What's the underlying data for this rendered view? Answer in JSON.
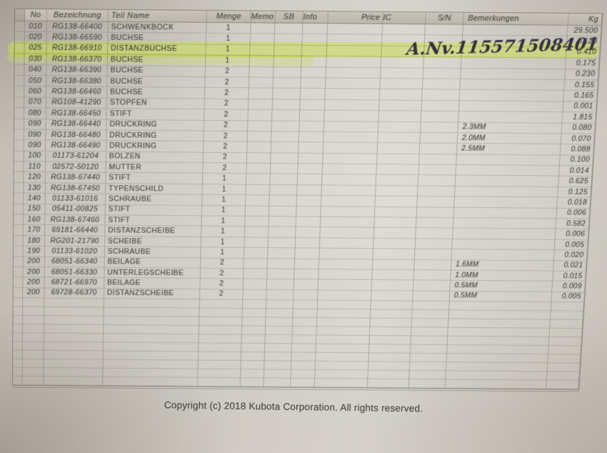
{
  "table": {
    "columns": [
      "",
      "No",
      "Bezeichnung",
      "Teil Name",
      "Menge",
      "Memo",
      "SB",
      "Info",
      "Price",
      "IC",
      "S/N",
      "Bemerkungen",
      "Kg"
    ],
    "rows": [
      {
        "no": "010",
        "bezeichnung": "RG138-66400",
        "teil_name": "SCHWENKBOCK",
        "menge": "1",
        "kg": "29.500"
      },
      {
        "no": "020",
        "bezeichnung": "RG138-66590",
        "teil_name": "BUCHSE",
        "menge": "1",
        "kg": "0.120"
      },
      {
        "no": "025",
        "bezeichnung": "RG138-66910",
        "teil_name": "DISTANZBUCHSE",
        "menge": "1",
        "kg": "0.410"
      },
      {
        "no": "030",
        "bezeichnung": "RG138-66370",
        "teil_name": "BUCHSE",
        "menge": "1",
        "kg": "0.175"
      },
      {
        "no": "040",
        "bezeichnung": "RG138-66390",
        "teil_name": "BUCHSE",
        "menge": "2",
        "kg": "0.230"
      },
      {
        "no": "050",
        "bezeichnung": "RG138-66380",
        "teil_name": "BUCHSE",
        "menge": "2",
        "kg": "0.155"
      },
      {
        "no": "060",
        "bezeichnung": "RG138-66460",
        "teil_name": "BUCHSE",
        "menge": "2",
        "kg": "0.165"
      },
      {
        "no": "070",
        "bezeichnung": "RG108-41290",
        "teil_name": "STOPFEN",
        "menge": "2",
        "kg": "0.001"
      },
      {
        "no": "080",
        "bezeichnung": "RG138-66450",
        "teil_name": "STIFT",
        "menge": "2",
        "kg": "1.815"
      },
      {
        "no": "090",
        "bezeichnung": "RG138-66440",
        "teil_name": "DRUCKRING",
        "menge": "2",
        "bemerkungen": "2.3MM",
        "kg": "0.080"
      },
      {
        "no": "090",
        "bezeichnung": "RG138-66480",
        "teil_name": "DRUCKRING",
        "menge": "2",
        "bemerkungen": "2.0MM",
        "kg": "0.070"
      },
      {
        "no": "090",
        "bezeichnung": "RG138-66490",
        "teil_name": "DRUCKRING",
        "menge": "2",
        "bemerkungen": "2.5MM",
        "kg": "0.088"
      },
      {
        "no": "100",
        "bezeichnung": "01173-61204",
        "teil_name": "BOLZEN",
        "menge": "2",
        "kg": "0.100"
      },
      {
        "no": "110",
        "bezeichnung": "02572-50120",
        "teil_name": "MUTTER",
        "menge": "2",
        "kg": "0.014"
      },
      {
        "no": "120",
        "bezeichnung": "RG138-67440",
        "teil_name": "STIFT",
        "menge": "1",
        "kg": "0.625"
      },
      {
        "no": "130",
        "bezeichnung": "RG138-67450",
        "teil_name": "TYPENSCHILD",
        "menge": "1",
        "kg": "0.125"
      },
      {
        "no": "140",
        "bezeichnung": "01133-61016",
        "teil_name": "SCHRAUBE",
        "menge": "1",
        "kg": "0.018"
      },
      {
        "no": "150",
        "bezeichnung": "05411-00825",
        "teil_name": "STIFT",
        "menge": "1",
        "kg": "0.006"
      },
      {
        "no": "160",
        "bezeichnung": "RG138-67460",
        "teil_name": "STIFT",
        "menge": "1",
        "kg": "0.582"
      },
      {
        "no": "170",
        "bezeichnung": "69181-66440",
        "teil_name": "DISTANZSCHEIBE",
        "menge": "1",
        "kg": "0.006"
      },
      {
        "no": "180",
        "bezeichnung": "RG201-21790",
        "teil_name": "SCHEIBE",
        "menge": "1",
        "kg": "0.005"
      },
      {
        "no": "190",
        "bezeichnung": "01133-61020",
        "teil_name": "SCHRAUBE",
        "menge": "1",
        "kg": "0.020"
      },
      {
        "no": "200",
        "bezeichnung": "68051-66340",
        "teil_name": "BEILAGE",
        "menge": "2",
        "bemerkungen": "1.6MM",
        "kg": "0.021"
      },
      {
        "no": "200",
        "bezeichnung": "68051-66330",
        "teil_name": "UNTERLEGSCHEIBE",
        "menge": "2",
        "bemerkungen": "1.0MM",
        "kg": "0.015"
      },
      {
        "no": "200",
        "bezeichnung": "68721-66970",
        "teil_name": "BEILAGE",
        "menge": "2",
        "bemerkungen": "0.5MM",
        "kg": "0.009"
      },
      {
        "no": "200",
        "bezeichnung": "69728-66370",
        "teil_name": "DISTANZSCHEIBE",
        "menge": "2",
        "bemerkungen": "0.5MM",
        "kg": "0.005"
      }
    ],
    "empty_row_count": 10
  },
  "annotations": {
    "handwritten_note": "A.Nv.115571508401",
    "highlighted_row_no": "025",
    "highlight_color": "#c9dc55"
  },
  "footer": {
    "copyright": "Copyright (c) 2018 Kubota Corporation. All rights reserved."
  }
}
